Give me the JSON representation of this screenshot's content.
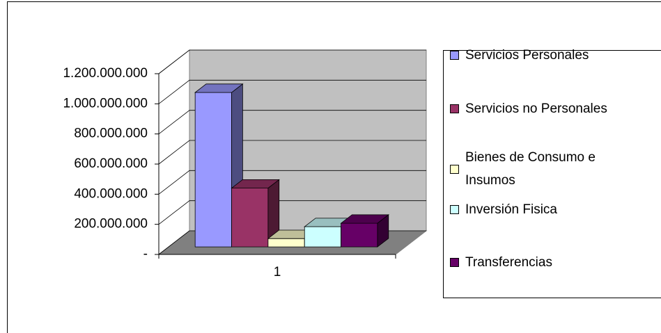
{
  "chart_data": {
    "type": "bar3d",
    "categories": [
      "1"
    ],
    "series": [
      {
        "name": "Servicios Personales",
        "color": "#9999ff",
        "values": [
          1025000000
        ]
      },
      {
        "name": "Servicios no Personales",
        "color": "#993366",
        "values": [
          390000000
        ]
      },
      {
        "name": "Bienes de Consumo e Insumos",
        "color": "#ffffcc",
        "values": [
          55000000
        ]
      },
      {
        "name": "Inversión Fisica",
        "color": "#ccffff",
        "values": [
          134000000
        ]
      },
      {
        "name": "Transferencias",
        "color": "#660066",
        "values": [
          157000000
        ]
      }
    ],
    "ylim": [
      0,
      1200000000
    ],
    "yticks": [
      {
        "value": 0,
        "label": "-"
      },
      {
        "value": 200000000,
        "label": "200.000.000"
      },
      {
        "value": 400000000,
        "label": "400.000.000"
      },
      {
        "value": 600000000,
        "label": "600.000.000"
      },
      {
        "value": 800000000,
        "label": "800.000.000"
      },
      {
        "value": 1000000000,
        "label": "1.000.000.000"
      },
      {
        "value": 1200000000,
        "label": "1.200.000.000"
      }
    ],
    "grid": true,
    "legend": "right"
  }
}
